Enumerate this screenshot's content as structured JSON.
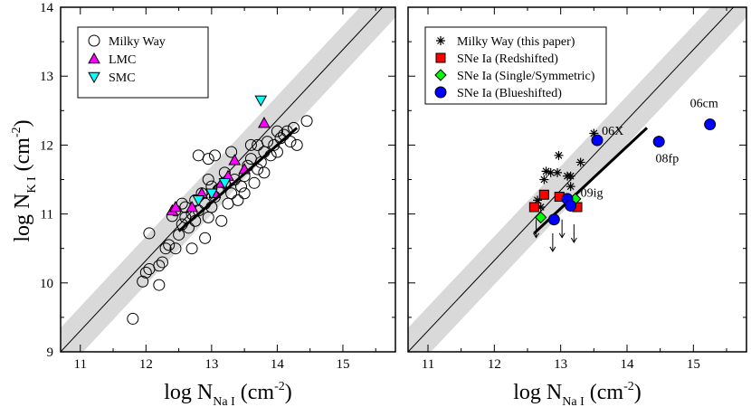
{
  "chart_data": [
    {
      "type": "scatter",
      "panel": "left",
      "xlabel_parts": [
        "log N",
        "Na I",
        " (cm",
        "-2",
        ")"
      ],
      "ylabel_parts": [
        "log N",
        "K I",
        " (cm",
        "-2",
        ")"
      ],
      "xlim": [
        10.7,
        15.8
      ],
      "ylim": [
        9,
        14
      ],
      "xticks": [
        11,
        12,
        13,
        14,
        15
      ],
      "yticks": [
        9,
        10,
        11,
        12,
        13,
        14
      ],
      "relation": {
        "x": [
          10.7,
          15.8
        ],
        "y": [
          9.0,
          14.2
        ]
      },
      "band_half_width": 0.35,
      "fit_line": {
        "x": [
          12.5,
          14.3
        ],
        "y": [
          10.75,
          12.25
        ]
      },
      "legend_position": "top-left",
      "series": [
        {
          "name": "Milky Way",
          "marker": "circle-open",
          "color": "#000000",
          "points": [
            [
              11.8,
              9.48
            ],
            [
              11.95,
              10.02
            ],
            [
              12.0,
              10.15
            ],
            [
              12.05,
              10.2
            ],
            [
              12.2,
              9.97
            ],
            [
              12.2,
              10.25
            ],
            [
              12.25,
              10.3
            ],
            [
              12.3,
              10.5
            ],
            [
              12.35,
              10.55
            ],
            [
              12.45,
              10.5
            ],
            [
              12.05,
              10.72
            ],
            [
              12.4,
              10.97
            ],
            [
              12.45,
              11.05
            ],
            [
              12.5,
              10.7
            ],
            [
              12.55,
              10.85
            ],
            [
              12.6,
              10.95
            ],
            [
              12.6,
              11.1
            ],
            [
              12.65,
              10.8
            ],
            [
              12.7,
              11.0
            ],
            [
              12.7,
              10.5
            ],
            [
              12.75,
              10.9
            ],
            [
              12.75,
              11.2
            ],
            [
              12.8,
              11.05
            ],
            [
              12.85,
              11.3
            ],
            [
              12.9,
              10.65
            ],
            [
              12.9,
              11.15
            ],
            [
              12.95,
              10.95
            ],
            [
              12.95,
              11.5
            ],
            [
              13.0,
              11.4
            ],
            [
              13.0,
              11.1
            ],
            [
              13.05,
              11.25
            ],
            [
              13.1,
              11.35
            ],
            [
              13.15,
              10.9
            ],
            [
              13.2,
              11.45
            ],
            [
              13.2,
              11.6
            ],
            [
              13.25,
              11.15
            ],
            [
              13.3,
              11.3
            ],
            [
              13.3,
              11.9
            ],
            [
              13.35,
              11.5
            ],
            [
              13.4,
              11.2
            ],
            [
              13.45,
              11.4
            ],
            [
              13.5,
              11.3
            ],
            [
              13.5,
              11.55
            ],
            [
              13.55,
              11.7
            ],
            [
              13.6,
              11.8
            ],
            [
              13.65,
              11.45
            ],
            [
              13.7,
              11.65
            ],
            [
              13.7,
              12.0
            ],
            [
              13.75,
              11.75
            ],
            [
              13.8,
              11.9
            ],
            [
              13.8,
              11.6
            ],
            [
              13.85,
              12.05
            ],
            [
              13.9,
              11.85
            ],
            [
              13.95,
              12.0
            ],
            [
              14.0,
              11.9
            ],
            [
              14.05,
              12.1
            ],
            [
              14.1,
              12.15
            ],
            [
              14.15,
              12.2
            ],
            [
              14.2,
              12.05
            ],
            [
              14.25,
              12.25
            ],
            [
              14.3,
              12.0
            ],
            [
              14.45,
              12.35
            ],
            [
              12.8,
              11.85
            ],
            [
              12.95,
              11.8
            ],
            [
              13.05,
              11.85
            ],
            [
              12.55,
              11.15
            ],
            [
              13.6,
              12.0
            ],
            [
              14.0,
              12.2
            ]
          ]
        },
        {
          "name": "LMC",
          "marker": "triangle-up",
          "color": "#ff00ff",
          "points": [
            [
              12.4,
              11.05
            ],
            [
              12.45,
              11.1
            ],
            [
              12.7,
              11.1
            ],
            [
              12.85,
              11.3
            ],
            [
              13.05,
              11.3
            ],
            [
              13.15,
              11.45
            ],
            [
              13.25,
              11.55
            ],
            [
              13.35,
              11.78
            ],
            [
              13.5,
              11.65
            ],
            [
              13.8,
              12.32
            ]
          ]
        },
        {
          "name": "SMC",
          "marker": "triangle-down",
          "color": "#00ffff",
          "points": [
            [
              12.8,
              11.2
            ],
            [
              13.0,
              11.3
            ],
            [
              13.2,
              11.45
            ],
            [
              13.75,
              12.65
            ]
          ]
        }
      ]
    },
    {
      "type": "scatter",
      "panel": "right",
      "xlabel_parts": [
        "log N",
        "Na I",
        " (cm",
        "-2",
        ")"
      ],
      "xlim": [
        10.7,
        15.8
      ],
      "ylim": [
        9,
        14
      ],
      "xticks": [
        11,
        12,
        13,
        14,
        15
      ],
      "yticks": [
        9,
        10,
        11,
        12,
        13,
        14
      ],
      "relation": {
        "x": [
          10.7,
          15.8
        ],
        "y": [
          9.0,
          14.2
        ]
      },
      "band_half_width": 0.35,
      "fit_line": {
        "x": [
          12.6,
          14.3
        ],
        "y": [
          10.72,
          12.25
        ]
      },
      "legend_position": "top-left",
      "series": [
        {
          "name": "Milky Way (this paper)",
          "marker": "asterisk",
          "color": "#000000",
          "points": [
            [
              12.65,
              11.2
            ],
            [
              12.75,
              11.5
            ],
            [
              12.78,
              11.62
            ],
            [
              12.85,
              11.6
            ],
            [
              12.95,
              11.6
            ],
            [
              12.97,
              11.85
            ],
            [
              13.1,
              11.55
            ],
            [
              13.15,
              11.55
            ],
            [
              13.15,
              11.4
            ],
            [
              13.3,
              11.75
            ],
            [
              13.5,
              12.17
            ],
            [
              13.05,
              11.25
            ],
            [
              12.7,
              11.1
            ]
          ]
        },
        {
          "name": "SNe Ia (Redshifted)",
          "marker": "square",
          "color": "#ff0000",
          "points": [
            [
              12.6,
              11.1
            ],
            [
              12.75,
              11.28
            ],
            [
              12.98,
              11.25
            ],
            [
              13.25,
              11.1
            ]
          ]
        },
        {
          "name": "SNe Ia (Single/Symmetric)",
          "marker": "diamond",
          "color": "#00ff00",
          "points": [
            [
              12.7,
              10.95
            ],
            [
              13.22,
              11.22
            ]
          ]
        },
        {
          "name": "SNe Ia (Blueshifted)",
          "marker": "circle-filled",
          "color": "#0000ff",
          "points": [
            [
              12.9,
              10.92
            ],
            [
              13.1,
              11.22
            ],
            [
              13.15,
              11.12
            ],
            [
              13.55,
              12.07
            ],
            [
              14.48,
              12.05
            ],
            [
              15.25,
              12.3
            ]
          ]
        }
      ],
      "upper_limits": [
        [
          12.63,
          10.92
        ],
        [
          13.2,
          10.85
        ],
        [
          13.02,
          10.92
        ],
        [
          12.88,
          10.72
        ]
      ],
      "annotations": [
        {
          "text": "06X",
          "x": 13.62,
          "y": 12.15
        },
        {
          "text": "08fp",
          "x": 14.43,
          "y": 11.75
        },
        {
          "text": "06cm",
          "x": 14.95,
          "y": 12.55
        },
        {
          "text": "09ig",
          "x": 13.3,
          "y": 11.25
        }
      ]
    }
  ]
}
